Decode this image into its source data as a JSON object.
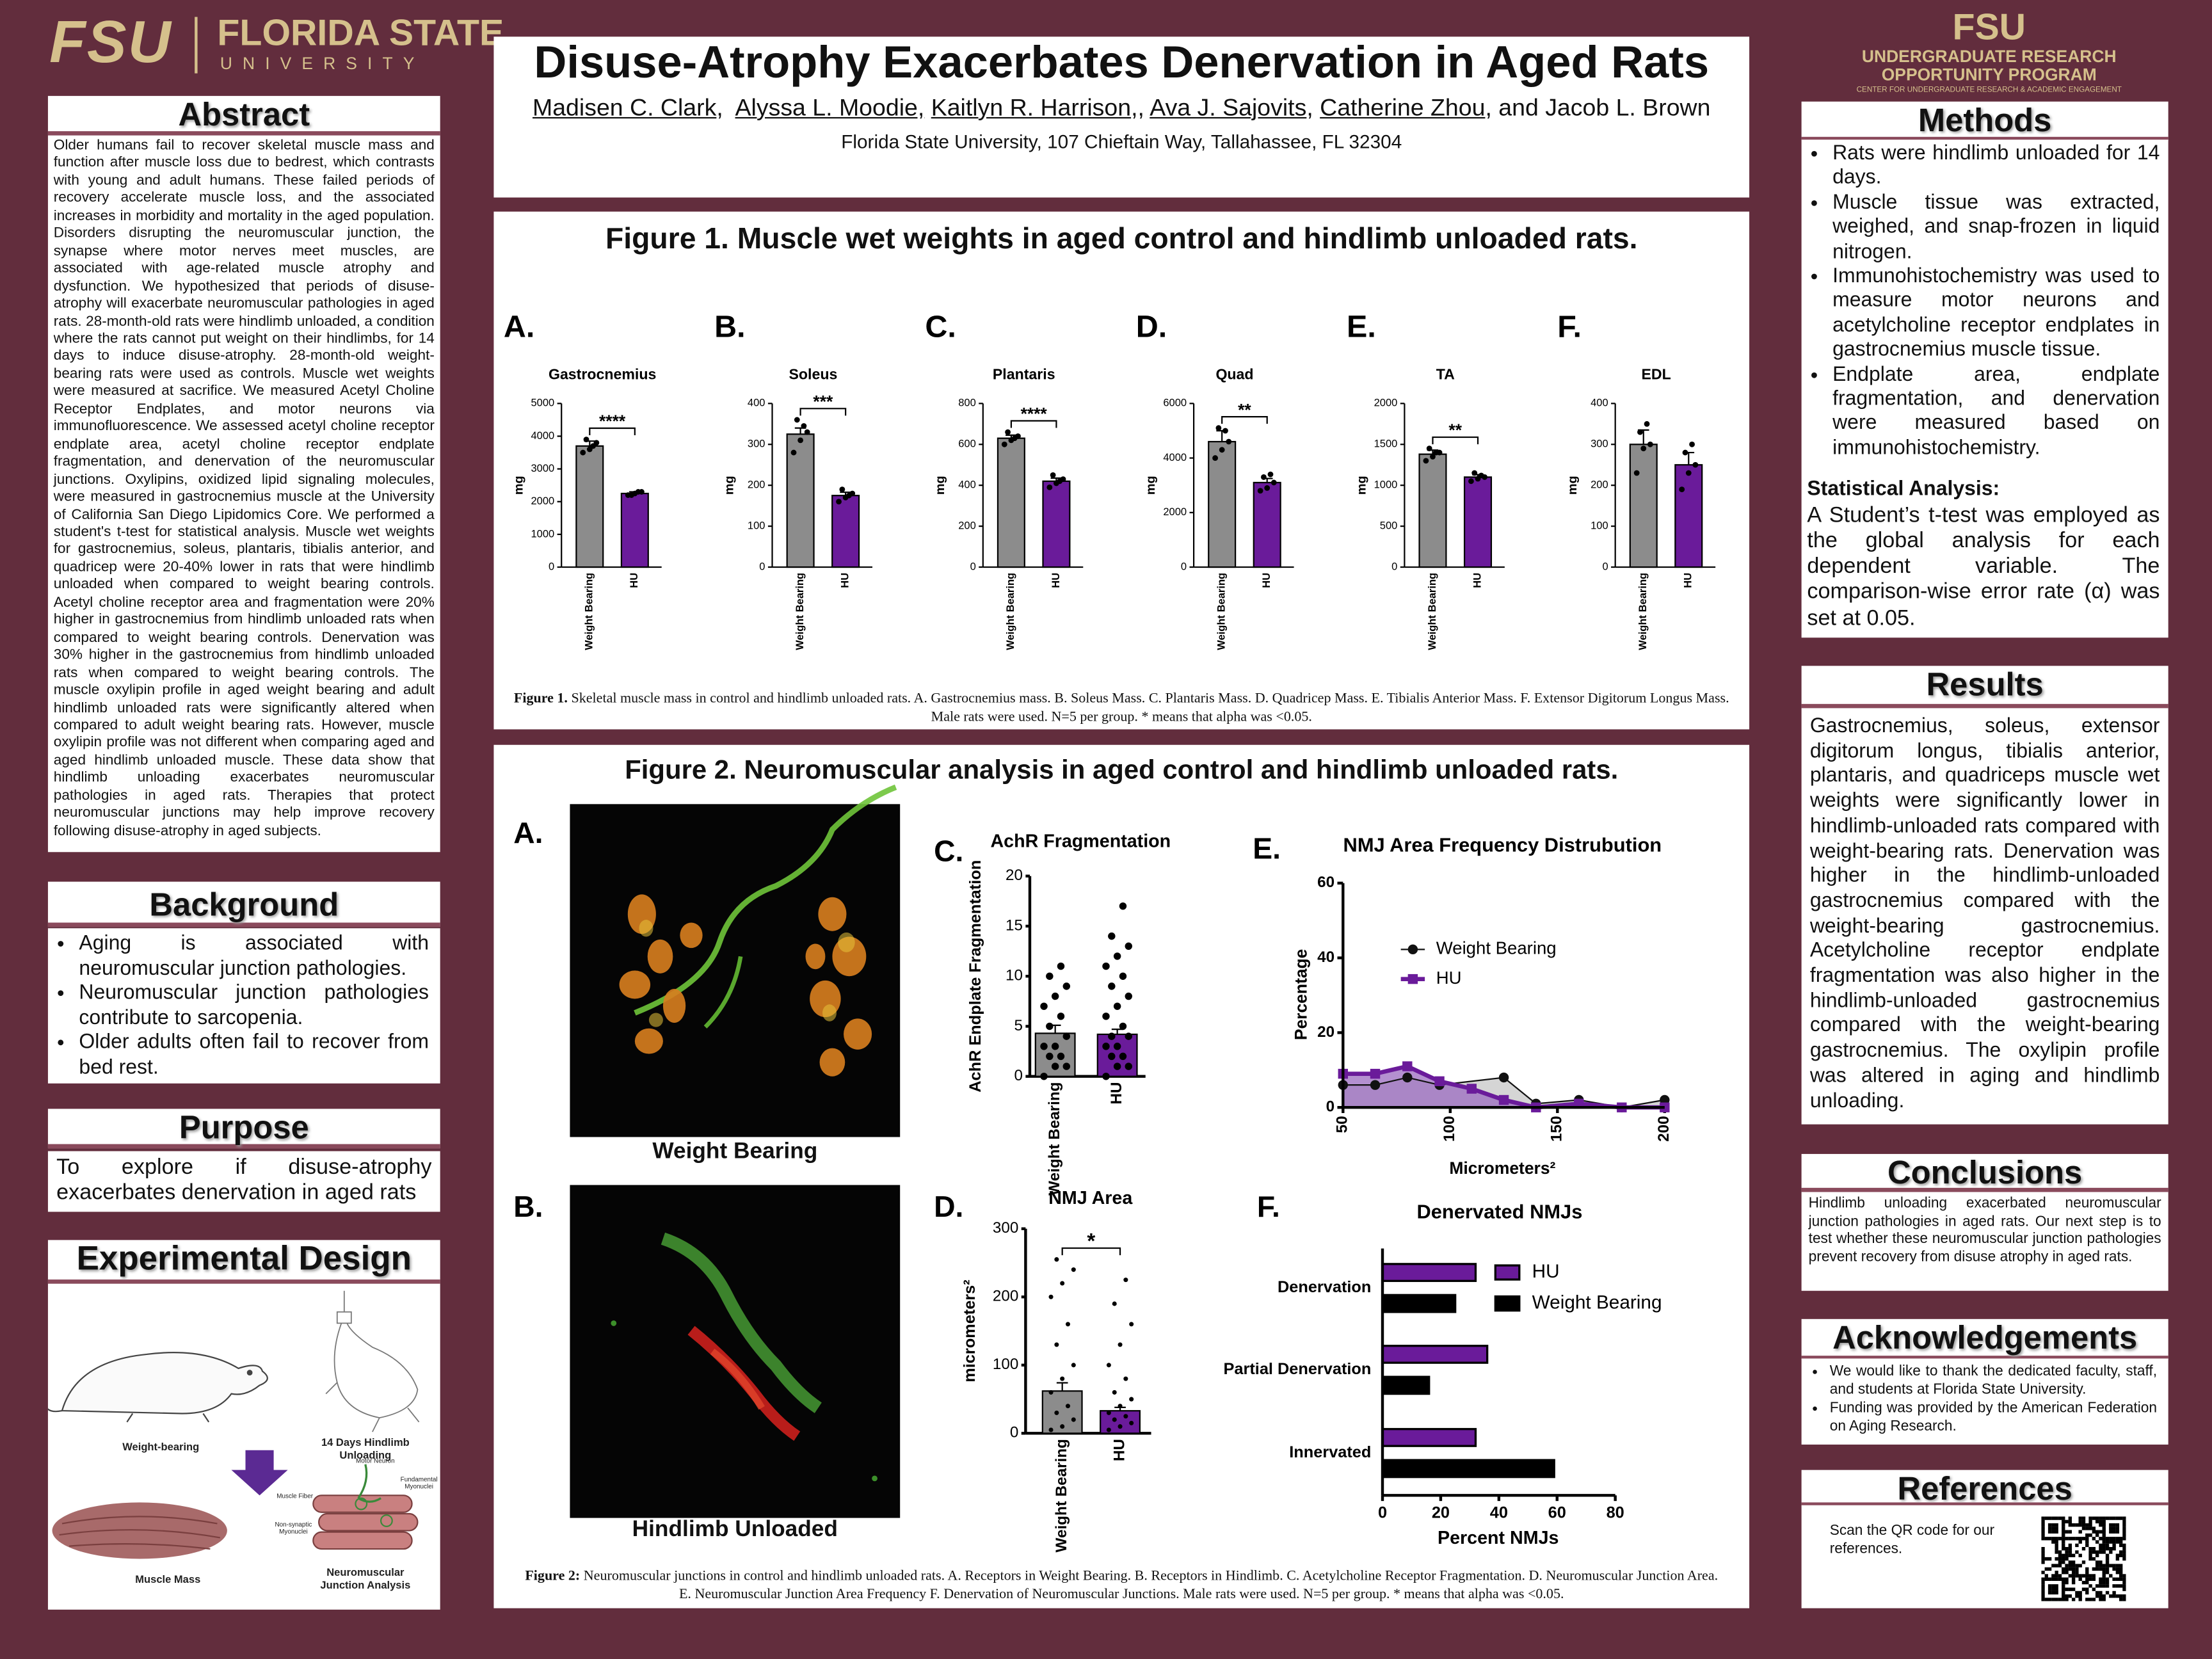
{
  "header": {
    "logo_left": {
      "mark": "FSU",
      "name": "FLORIDA STATE",
      "sub": "UNIVERSITY"
    },
    "title": "Disuse-Atrophy Exacerbates Denervation in Aged Rats",
    "authors": [
      {
        "text": "Madisen C. Clark",
        "underline": true
      },
      {
        "text": ",  ",
        "underline": false
      },
      {
        "text": "Alyssa L. Moodie,",
        "underline": true
      },
      {
        "text": " ",
        "underline": false
      },
      {
        "text": "Kaitlyn R. Harrison",
        "underline": true
      },
      {
        "text": ",, ",
        "underline": false
      },
      {
        "text": "Ava J. Sajovits",
        "underline": true
      },
      {
        "text": ", ",
        "underline": false
      },
      {
        "text": "Catherine Zhou",
        "underline": true
      },
      {
        "text": ", and Jacob L. Brown",
        "underline": false
      }
    ],
    "affiliation": "Florida State University, 107 Chieftain Way, Tallahassee, FL 32304",
    "logo_right": {
      "mark": "FSU",
      "name": "UNDERGRADUATE RESEARCH OPPORTUNITY PROGRAM",
      "sub": "CENTER FOR UNDERGRADUATE RESEARCH & ACADEMIC ENGAGEMENT"
    }
  },
  "abstract": {
    "heading": "Abstract",
    "text": "Older humans fail to recover skeletal muscle mass and function after muscle loss due to bedrest, which contrasts with young and adult humans. These failed periods of recovery accelerate muscle loss, and the associated increases in morbidity and mortality in the aged population. Disorders disrupting the neuromuscular junction, the synapse where motor nerves meet muscles, are associated with age-related muscle atrophy and dysfunction. We hypothesized that periods of disuse-atrophy will exacerbate neuromuscular pathologies in aged rats. 28-month-old rats were hindlimb unloaded, a condition where the rats cannot put weight on their hindlimbs, for 14 days to induce disuse-atrophy. 28-month-old weight-bearing rats were used as controls. Muscle wet weights were measured at sacrifice. We measured Acetyl Choline Receptor Endplates, and motor neurons via immunofluorescence. We assessed acetyl choline receptor endplate area, acetyl choline receptor endplate fragmentation, and denervation of the neuromuscular junctions. Oxylipins, oxidized lipid signaling molecules, were measured in gastrocnemius muscle at the University of California San Diego Lipidomics Core. We performed a student's t-test for statistical analysis. Muscle wet weights for gastrocnemius, soleus, plantaris, tibialis anterior, and quadricep were 20-40% lower in rats that were hindlimb unloaded when compared to weight bearing controls. Acetyl choline receptor area and fragmentation were 20% higher in gastrocnemius from hindlimb unloaded rats when compared to weight bearing controls. Denervation was 30% higher in the gastrocnemius from hindlimb unloaded rats when compared to weight bearing controls. The muscle oxylipin profile in aged weight bearing and adult hindlimb unloaded rats were significantly altered when compared to adult weight bearing rats. However, muscle oxylipin profile was not different when comparing aged and aged hindlimb unloaded muscle. These data show that hindlimb unloading exacerbates neuromuscular pathologies in aged rats. Therapies that protect neuromuscular junctions may help improve recovery following disuse-atrophy in aged subjects."
  },
  "background": {
    "heading": "Background",
    "bullets": [
      "Aging is associated with neuromuscular junction pathologies.",
      "Neuromuscular junction pathologies contribute to sarcopenia.",
      "Older adults often fail to recover from bed rest."
    ]
  },
  "purpose": {
    "heading": "Purpose",
    "text": "To explore if disuse-atrophy exacerbates denervation in aged rats"
  },
  "experimental_design": {
    "heading": "Experimental Design",
    "labels": {
      "weight_bearing": "Weight-bearing",
      "unloading": "14 Days Hindlimb Unloading",
      "muscle_mass": "Muscle Mass",
      "nmj_analysis": "Neuromuscular Junction Analysis",
      "muscle_fiber": "Muscle Fiber",
      "motor_neuron": "Motor Neuron",
      "fundamental": "Fundamental Myonuclei",
      "non_synaptic": "Non-synaptic Myonuclei"
    }
  },
  "figure1": {
    "title": "Figure 1.  Muscle wet weights in aged control and hindlimb unloaded rats.",
    "panels": [
      {
        "type": "bar",
        "letter": "A.",
        "title": "Gastrocnemius",
        "y_label": "mg",
        "categories": [
          "Weight Bearing",
          "HU"
        ],
        "colors": [
          "#8c8c8c",
          "#6a1b9a"
        ],
        "values": [
          3700,
          2250
        ],
        "errors": [
          150,
          50
        ],
        "points": [
          [
            3500,
            3600,
            3800,
            3900,
            3700
          ],
          [
            2200,
            2250,
            2300,
            2200,
            2300
          ]
        ],
        "significance": "****",
        "ylim": [
          0,
          5000
        ],
        "yticks": [
          0,
          1000,
          2000,
          3000,
          4000,
          5000
        ]
      },
      {
        "type": "bar",
        "letter": "B.",
        "title": "Soleus",
        "y_label": "mg",
        "categories": [
          "Weight Bearing",
          "HU"
        ],
        "colors": [
          "#8c8c8c",
          "#6a1b9a"
        ],
        "values": [
          325,
          175
        ],
        "errors": [
          15,
          8
        ],
        "points": [
          [
            280,
            310,
            330,
            360,
            345
          ],
          [
            160,
            170,
            180,
            190,
            175
          ]
        ],
        "significance": "***",
        "ylim": [
          0,
          400
        ],
        "yticks": [
          0,
          100,
          200,
          300,
          400
        ]
      },
      {
        "type": "bar",
        "letter": "C.",
        "title": "Plantaris",
        "y_label": "mg",
        "categories": [
          "Weight Bearing",
          "HU"
        ],
        "colors": [
          "#8c8c8c",
          "#6a1b9a"
        ],
        "values": [
          630,
          420
        ],
        "errors": [
          15,
          15
        ],
        "points": [
          [
            600,
            620,
            640,
            660,
            630
          ],
          [
            390,
            410,
            430,
            450,
            420
          ]
        ],
        "significance": "****",
        "ylim": [
          0,
          800
        ],
        "yticks": [
          0,
          200,
          400,
          600,
          800
        ]
      },
      {
        "type": "bar",
        "letter": "D.",
        "title": "Quad",
        "y_label": "mg",
        "categories": [
          "Weight Bearing",
          "HU"
        ],
        "colors": [
          "#8c8c8c",
          "#6a1b9a"
        ],
        "values": [
          4600,
          3100
        ],
        "errors": [
          400,
          150
        ],
        "points": [
          [
            4000,
            4300,
            4600,
            5100,
            5000
          ],
          [
            2800,
            2900,
            3100,
            3300,
            3400
          ]
        ],
        "significance": "**",
        "ylim": [
          0,
          6000
        ],
        "yticks": [
          0,
          2000,
          4000,
          6000
        ]
      },
      {
        "type": "bar",
        "letter": "E.",
        "title": "TA",
        "y_label": "mg",
        "categories": [
          "Weight Bearing",
          "HU"
        ],
        "colors": [
          "#8c8c8c",
          "#6a1b9a"
        ],
        "values": [
          1380,
          1100
        ],
        "errors": [
          50,
          30
        ],
        "points": [
          [
            1300,
            1350,
            1400,
            1450,
            1400
          ],
          [
            1050,
            1080,
            1100,
            1150,
            1120
          ]
        ],
        "significance": "**",
        "ylim": [
          0,
          2000
        ],
        "yticks": [
          0,
          500,
          1000,
          1500,
          2000
        ]
      },
      {
        "type": "bar",
        "letter": "F.",
        "title": "EDL",
        "y_label": "mg",
        "categories": [
          "Weight Bearing",
          "HU"
        ],
        "colors": [
          "#8c8c8c",
          "#6a1b9a"
        ],
        "values": [
          300,
          250
        ],
        "errors": [
          35,
          30
        ],
        "points": [
          [
            230,
            290,
            300,
            330,
            350
          ],
          [
            190,
            230,
            250,
            280,
            300
          ]
        ],
        "ylim": [
          0,
          400
        ],
        "yticks": [
          0,
          100,
          200,
          300,
          400
        ]
      }
    ],
    "caption_label": "Figure 1.",
    "caption": "Skeletal muscle mass in control and hindlimb unloaded rats. A. Gastrocnemius mass. B. Soleus Mass. C. Plantaris Mass. D. Quadricep Mass. E. Tibialis Anterior Mass. F. Extensor Digitorum Longus Mass. Male rats were used. N=5 per group. * means that alpha was <0.05."
  },
  "figure2": {
    "title": "Figure 2. Neuromuscular analysis in aged control and hindlimb unloaded rats.",
    "images": [
      {
        "letter": "A.",
        "caption": "Weight Bearing"
      },
      {
        "letter": "B.",
        "caption": "Hindlimb Unloaded"
      }
    ],
    "charts": [
      {
        "type": "bar",
        "letter": "C.",
        "title": "AchR Fragmentation",
        "y_label": "AchR Endplate Fragmentation",
        "categories": [
          "Weight Bearing",
          "HU"
        ],
        "colors": [
          "#8c8c8c",
          "#6a1b9a"
        ],
        "values": [
          4.3,
          4.2
        ],
        "errors": [
          0.8,
          0.5
        ],
        "points": [
          [
            0,
            1,
            1,
            2,
            2,
            3,
            3,
            4,
            5,
            6,
            7,
            8,
            9,
            10,
            11
          ],
          [
            0,
            1,
            1,
            2,
            2,
            3,
            3,
            4,
            4,
            5,
            6,
            7,
            8,
            9,
            10,
            11,
            12,
            13,
            14,
            17
          ]
        ],
        "ylim": [
          0,
          20
        ],
        "yticks": [
          0,
          5,
          10,
          15,
          20
        ]
      },
      {
        "type": "bar",
        "letter": "D.",
        "title": "NMJ Area",
        "y_label": "micrometers²",
        "categories": [
          "Weight Bearing",
          "HU"
        ],
        "colors": [
          "#8c8c8c",
          "#6a1b9a"
        ],
        "values": [
          62,
          33
        ],
        "errors": [
          12,
          5
        ],
        "points": [
          [
            5,
            10,
            20,
            30,
            40,
            60,
            80,
            100,
            130,
            160,
            200,
            220,
            240,
            255
          ],
          [
            5,
            10,
            15,
            20,
            25,
            30,
            40,
            50,
            60,
            80,
            100,
            130,
            160,
            190,
            225
          ]
        ],
        "significance": "*",
        "ylim": [
          0,
          300
        ],
        "yticks": [
          0,
          100,
          200,
          300
        ]
      },
      {
        "type": "line",
        "letter": "E.",
        "title": "NMJ  Area Frequency Distrubution",
        "x_label": "Micrometers²",
        "y_label": "Percentage",
        "series": [
          {
            "name": "Weight Bearing",
            "color": "#111111",
            "fill": "#d0d0d0",
            "marker": "circle",
            "x": [
              50,
              65,
              80,
              95,
              125,
              140,
              160,
              180,
              200
            ],
            "values": [
              6,
              6,
              8,
              6,
              8,
              1,
              2,
              0,
              2
            ]
          },
          {
            "name": "HU",
            "color": "#6a1b9a",
            "fill": "#9b6bc0",
            "marker": "square",
            "x": [
              50,
              65,
              80,
              95,
              110,
              125,
              140,
              160,
              180,
              200
            ],
            "values": [
              9,
              9,
              11,
              7,
              5,
              2,
              0,
              1,
              0,
              0
            ]
          }
        ],
        "xlim": [
          50,
          200
        ],
        "xticks": [
          50,
          100,
          150,
          200
        ],
        "ylim": [
          0,
          60
        ],
        "yticks": [
          0,
          20,
          40,
          60
        ]
      },
      {
        "type": "hbar",
        "letter": "F.",
        "title": "Denervated NMJs",
        "x_label": "Percent NMJs",
        "categories": [
          "Denervation",
          "Partial Denervation",
          "Innervated"
        ],
        "series": [
          {
            "name": "HU",
            "color": "#6a1b9a",
            "values": [
              32,
              36,
              32
            ]
          },
          {
            "name": "Weight Bearing",
            "color": "#000000",
            "values": [
              25,
              16,
              59
            ]
          }
        ],
        "xlim": [
          0,
          80
        ],
        "xticks": [
          0,
          20,
          40,
          60,
          80
        ]
      }
    ],
    "caption_label": "Figure 2:",
    "caption": "Neuromuscular junctions in control and hindlimb unloaded rats. A. Receptors in Weight Bearing. B. Receptors in Hindlimb. C. Acetylcholine Receptor Fragmentation. D. Neuromuscular Junction Area. E. Neuromuscular Junction Area Frequency F. Denervation of Neuromuscular Junctions. Male rats were used. N=5 per group. * means that alpha was <0.05."
  },
  "methods": {
    "heading": "Methods",
    "bullets": [
      "Rats were hindlimb unloaded for 14 days.",
      "Muscle tissue was extracted, weighed, and snap-frozen in liquid nitrogen.",
      "Immunohistochemistry was used to measure motor neurons and acetylcholine receptor endplates in gastrocnemius muscle tissue.",
      "Endplate area, endplate fragmentation, and denervation were measured based on immunohistochemistry."
    ],
    "stats_heading": "Statistical Analysis:",
    "stats_text": "A Student’s t-test was employed as the global analysis for each dependent variable. The comparison-wise error rate (α) was set at 0.05."
  },
  "results": {
    "heading": "Results",
    "text": "Gastrocnemius, soleus, extensor digitorum longus, tibialis anterior, plantaris, and quadriceps muscle wet weights were significantly lower in hindlimb-unloaded rats compared with weight-bearing rats. Denervation was higher in the hindlimb-unloaded gastrocnemius compared with the weight-bearing gastrocnemius. Acetylcholine receptor endplate fragmentation was also higher in the hindlimb-unloaded gastrocnemius compared with the weight-bearing gastrocnemius. The oxylipin profile was altered in aging and hindlimb unloading."
  },
  "conclusions": {
    "heading": "Conclusions",
    "text": "Hindlimb unloading exacerbated neuromuscular junction pathologies in aged rats. Our next step is to test whether these neuromuscular junction pathologies prevent recovery from disuse atrophy in aged rats."
  },
  "acknowledgements": {
    "heading": "Acknowledgements",
    "bullets": [
      "We would like to thank the dedicated faculty, staff, and students at Florida State University.",
      "Funding was provided by the American Federation on Aging Research."
    ]
  },
  "references": {
    "heading": "References",
    "text": "Scan the QR code for our references."
  }
}
